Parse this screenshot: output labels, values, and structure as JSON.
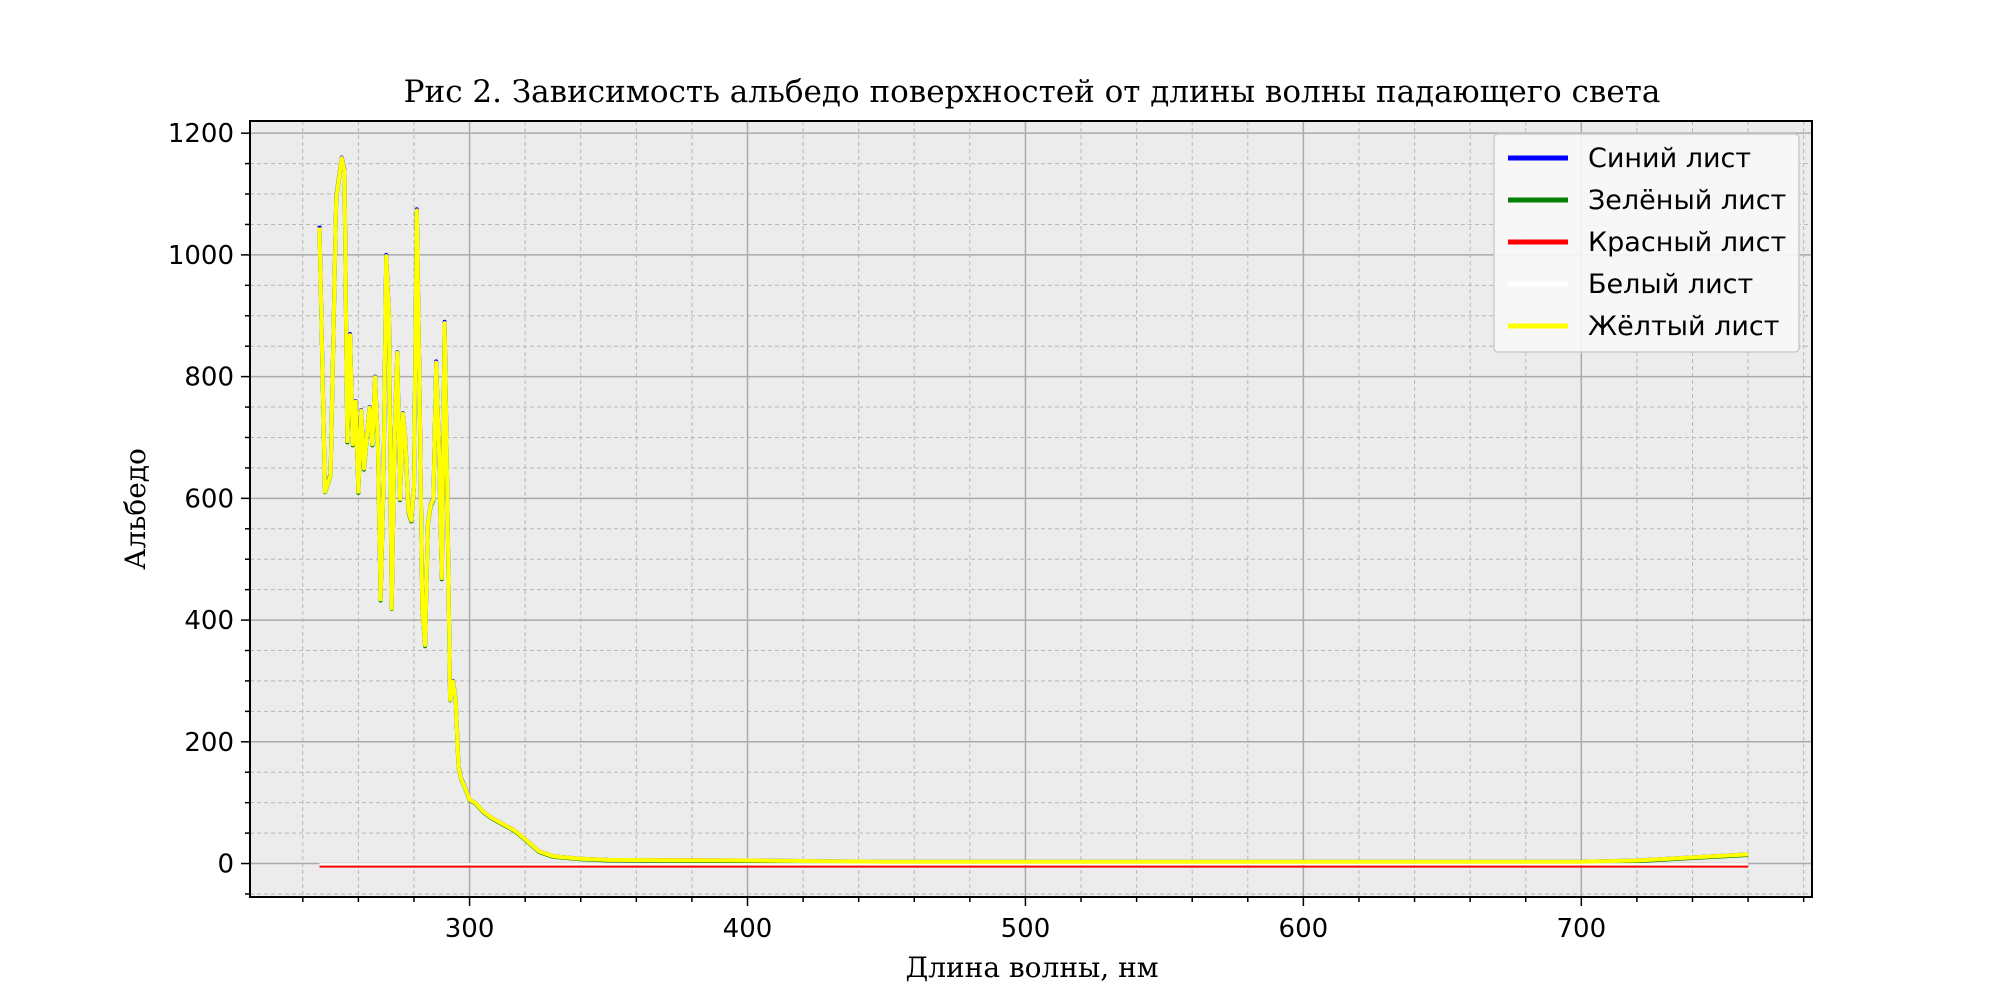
{
  "chart_data": {
    "type": "line",
    "title": "Рис 2. Зависимость альбедо поверхностей от длины волны падающего света",
    "xlabel": "Длина волны, нм",
    "ylabel": "Альбедо",
    "xlim": [
      221,
      783
    ],
    "ylim": [
      -55,
      1220
    ],
    "xticks": [
      300,
      400,
      500,
      600,
      700
    ],
    "yticks": [
      0,
      200,
      400,
      600,
      800,
      1000,
      1200
    ],
    "grid": true,
    "minor_grid": true,
    "legend_position": "top-right",
    "x": [
      246,
      248,
      250,
      252,
      254,
      255,
      256,
      257,
      258,
      259,
      260,
      261,
      262,
      263,
      264,
      265,
      266,
      267,
      268,
      269,
      270,
      271,
      272,
      273,
      274,
      275,
      276,
      277,
      278,
      279,
      280,
      281,
      282,
      283,
      284,
      285,
      286,
      287,
      288,
      289,
      290,
      291,
      292,
      293,
      294,
      295,
      296,
      297,
      298,
      300,
      302,
      305,
      308,
      312,
      316,
      320,
      325,
      330,
      340,
      350,
      400,
      450,
      500,
      550,
      600,
      650,
      700,
      720,
      740,
      760
    ],
    "series": [
      {
        "name": "Синий лист",
        "color": "#0000ff",
        "values": [
          1048,
          612,
          640,
          1095,
          1160,
          1140,
          695,
          870,
          690,
          760,
          612,
          745,
          650,
          700,
          750,
          690,
          800,
          690,
          435,
          620,
          1000,
          900,
          420,
          700,
          840,
          600,
          740,
          690,
          580,
          565,
          620,
          1075,
          790,
          420,
          360,
          560,
          590,
          600,
          825,
          680,
          470,
          890,
          610,
          270,
          300,
          270,
          160,
          140,
          130,
          105,
          100,
          85,
          75,
          65,
          55,
          40,
          20,
          12,
          8,
          6,
          5,
          3,
          3,
          3,
          3,
          3,
          3,
          5,
          10,
          15
        ]
      },
      {
        "name": "Зелёный лист",
        "color": "#008000",
        "values": [
          1042,
          610,
          637,
          1090,
          1158,
          1136,
          692,
          866,
          687,
          757,
          609,
          742,
          647,
          697,
          747,
          687,
          797,
          687,
          432,
          617,
          996,
          896,
          418,
          697,
          837,
          597,
          737,
          687,
          577,
          562,
          617,
          1071,
          787,
          417,
          357,
          557,
          587,
          597,
          821,
          677,
          467,
          886,
          607,
          268,
          298,
          268,
          158,
          138,
          128,
          104,
          99,
          84,
          74,
          64,
          54,
          39,
          19,
          11,
          7,
          5,
          4,
          2,
          2,
          2,
          2,
          2,
          2,
          4,
          9,
          14
        ]
      },
      {
        "name": "Красный лист",
        "color": "#ff0000",
        "values": [
          -5,
          -5,
          -5,
          -5,
          -5,
          -5,
          -5,
          -5,
          -5,
          -5,
          -5,
          -5,
          -5,
          -5,
          -5,
          -5,
          -5,
          -5,
          -5,
          -5,
          -5,
          -5,
          -5,
          -5,
          -5,
          -5,
          -5,
          -5,
          -5,
          -5,
          -5,
          -5,
          -5,
          -5,
          -5,
          -5,
          -5,
          -5,
          -5,
          -5,
          -5,
          -5,
          -5,
          -5,
          -5,
          -5,
          -5,
          -5,
          -5,
          -5,
          -5,
          -5,
          -5,
          -5,
          -5,
          -5,
          -5,
          -5,
          -5,
          -5,
          -5,
          -5,
          -5,
          -5,
          -5,
          -5,
          -5,
          -5,
          -5,
          -5
        ]
      },
      {
        "name": "Белый лист",
        "color": "#ffffff",
        "values": [
          -1,
          -1,
          -1,
          -1,
          -1,
          -1,
          -1,
          -1,
          -1,
          -1,
          -1,
          -1,
          -1,
          -1,
          -1,
          -1,
          -1,
          -1,
          -1,
          -1,
          -1,
          -1,
          -1,
          -1,
          -1,
          -1,
          -1,
          -1,
          -1,
          -1,
          -1,
          -1,
          -1,
          -1,
          -1,
          -1,
          -1,
          -1,
          -1,
          -1,
          -1,
          -1,
          -1,
          -1,
          -1,
          -1,
          -1,
          -1,
          -1,
          -1,
          -1,
          -1,
          -1,
          -1,
          -1,
          -1,
          -1,
          -1,
          -1,
          -1,
          -1,
          -1,
          -1,
          -1,
          -1,
          -1,
          -1,
          -1,
          -1,
          -1
        ]
      },
      {
        "name": "Жёлтый лист",
        "color": "#ffff00",
        "values": [
          1045,
          611,
          638,
          1092,
          1159,
          1138,
          694,
          868,
          689,
          759,
          611,
          744,
          649,
          699,
          749,
          689,
          799,
          689,
          434,
          619,
          998,
          898,
          419,
          699,
          839,
          599,
          739,
          689,
          579,
          564,
          619,
          1073,
          789,
          419,
          359,
          559,
          589,
          599,
          823,
          679,
          469,
          888,
          609,
          269,
          299,
          269,
          159,
          139,
          129,
          105,
          100,
          85,
          75,
          65,
          55,
          40,
          20,
          12,
          8,
          6,
          5,
          3,
          3,
          3,
          3,
          3,
          3,
          5,
          10,
          15
        ]
      }
    ]
  }
}
